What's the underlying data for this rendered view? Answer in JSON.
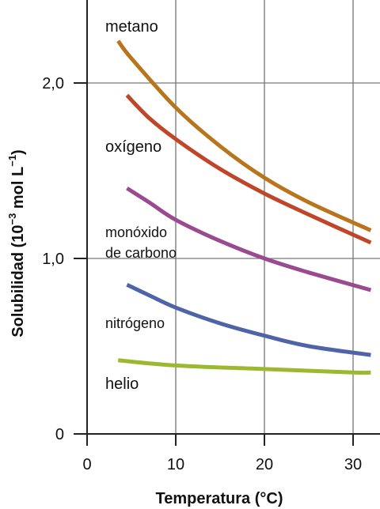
{
  "chart_data": {
    "type": "line",
    "title": "",
    "xlabel": "Temperatura (°C)",
    "ylabel_parts": {
      "before": "Solubilidad (10",
      "exp1": "−3",
      "middle": " mol L",
      "exp2": "−1",
      "after": ")"
    },
    "xlim": [
      -1,
      33
    ],
    "ylim": [
      0,
      2.45
    ],
    "x_ticks": [
      {
        "value": 0,
        "label": "0"
      },
      {
        "value": 10,
        "label": "10"
      },
      {
        "value": 20,
        "label": "20"
      },
      {
        "value": 30,
        "label": "30"
      }
    ],
    "y_ticks": [
      {
        "value": 0,
        "label": "0"
      },
      {
        "value": 1.0,
        "label": "1,0"
      },
      {
        "value": 2.0,
        "label": "2,0"
      }
    ],
    "grid": true,
    "series": [
      {
        "name": "metano",
        "label_lines": [
          "metano"
        ],
        "color": "#b8751c",
        "x": [
          3.5,
          5,
          10,
          15,
          20,
          25,
          32
        ],
        "y": [
          2.24,
          2.14,
          1.86,
          1.64,
          1.46,
          1.32,
          1.16
        ]
      },
      {
        "name": "oxígeno",
        "label_lines": [
          "oxígeno"
        ],
        "color": "#c0462a",
        "x": [
          4.5,
          7,
          10,
          15,
          20,
          25,
          32
        ],
        "y": [
          1.93,
          1.8,
          1.68,
          1.51,
          1.37,
          1.25,
          1.09
        ]
      },
      {
        "name": "monóxido de carbono",
        "label_lines": [
          "monóxido",
          "de carbono"
        ],
        "color": "#9a4a8f",
        "x": [
          4.5,
          7,
          10,
          15,
          20,
          25,
          32
        ],
        "y": [
          1.4,
          1.32,
          1.22,
          1.1,
          1.0,
          0.92,
          0.82
        ]
      },
      {
        "name": "nitrógeno",
        "label_lines": [
          "nitrógeno"
        ],
        "color": "#4f63a8",
        "x": [
          4.5,
          7,
          10,
          15,
          20,
          25,
          32
        ],
        "y": [
          0.85,
          0.79,
          0.72,
          0.63,
          0.56,
          0.5,
          0.45
        ]
      },
      {
        "name": "helio",
        "label_lines": [
          "helio"
        ],
        "color": "#9bb82e",
        "x": [
          3.5,
          10,
          20,
          30,
          32
        ],
        "y": [
          0.42,
          0.39,
          0.37,
          0.35,
          0.35
        ]
      }
    ]
  }
}
